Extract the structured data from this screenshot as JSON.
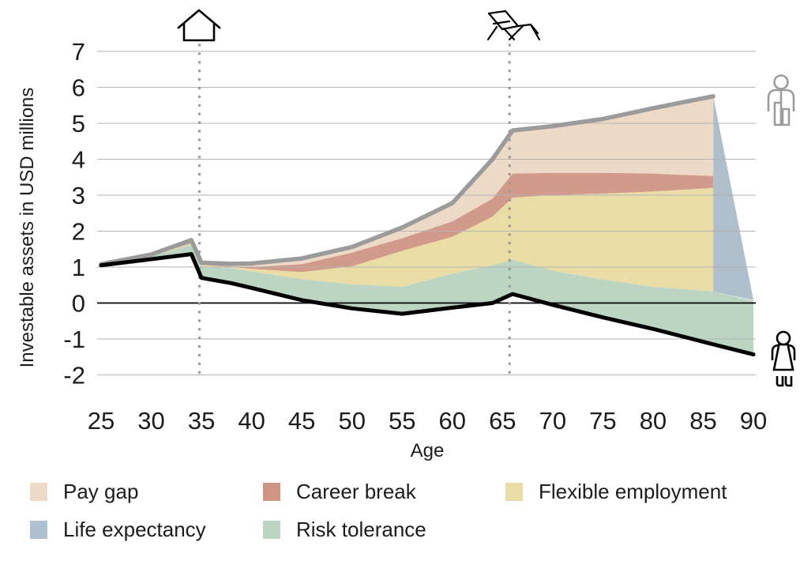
{
  "chart_data": {
    "type": "area",
    "title": "",
    "xlabel": "Age",
    "ylabel": "Investable assets in USD millions",
    "x_ticks": [
      25,
      30,
      35,
      40,
      45,
      50,
      55,
      60,
      65,
      70,
      75,
      80,
      85,
      90
    ],
    "y_ticks": [
      -2,
      -1,
      0,
      1,
      2,
      3,
      4,
      5,
      6,
      7
    ],
    "xlim": [
      25,
      90
    ],
    "ylim": [
      -2,
      7
    ],
    "grid": "horizontal",
    "ages": [
      25,
      30,
      34,
      35,
      38,
      40,
      45,
      50,
      55,
      60,
      64,
      66,
      70,
      75,
      80,
      86,
      90
    ],
    "series": [
      {
        "name": "wealth-without-gaps-gray-line",
        "ends_at_age": 86,
        "values": [
          1.08,
          1.35,
          1.75,
          1.12,
          1.09,
          1.1,
          1.24,
          1.56,
          2.1,
          2.78,
          4.0,
          4.8,
          4.92,
          5.12,
          5.42,
          5.75
        ]
      },
      {
        "name": "career-break-top-boundary",
        "ends_at_age": 86,
        "values": [
          1.08,
          1.33,
          1.68,
          1.08,
          1.02,
          1.0,
          1.08,
          1.4,
          1.8,
          2.27,
          2.9,
          3.6,
          3.62,
          3.62,
          3.6,
          3.53
        ]
      },
      {
        "name": "flexible-employment-top-boundary",
        "ends_at_age": 86,
        "values": [
          1.08,
          1.32,
          1.66,
          1.06,
          1.0,
          0.95,
          0.86,
          1.02,
          1.45,
          1.84,
          2.4,
          2.93,
          3.0,
          3.04,
          3.1,
          3.2
        ]
      },
      {
        "name": "risk-tolerance-top-boundary",
        "ends_at_age": 90,
        "values": [
          1.07,
          1.3,
          1.62,
          1.02,
          0.97,
          0.88,
          0.66,
          0.52,
          0.45,
          0.82,
          1.05,
          1.2,
          0.9,
          0.65,
          0.45,
          0.32,
          0.06
        ]
      },
      {
        "name": "actual-wealth-black-line",
        "ends_at_age": 90,
        "values": [
          1.05,
          1.22,
          1.36,
          0.7,
          0.55,
          0.42,
          0.08,
          -0.15,
          -0.3,
          -0.13,
          0.0,
          0.25,
          -0.05,
          -0.4,
          -0.72,
          -1.15,
          -1.43
        ]
      }
    ],
    "life_expectancy_wedge": {
      "ages": [
        86,
        90
      ],
      "top": [
        5.75,
        0.08
      ],
      "bottom": [
        0.32,
        0.08
      ]
    },
    "milestones": [
      {
        "age": 34.8,
        "icon": "house-icon"
      },
      {
        "age": 65.7,
        "icon": "deck-chair-icon"
      }
    ],
    "side_icons": [
      "man-icon",
      "woman-icon"
    ],
    "legend": [
      {
        "label": "Pay gap",
        "color": "#ecd9c6"
      },
      {
        "label": "Career break",
        "color": "#cf9484"
      },
      {
        "label": "Flexible employment",
        "color": "#e9dca5"
      },
      {
        "label": "Life expectancy",
        "color": "#aebfd0"
      },
      {
        "label": "Risk tolerance",
        "color": "#bbd5c2"
      }
    ],
    "colors": {
      "pay_gap_area": "#ecd9c6",
      "career_break_area": "#d29a8a",
      "flexible_employment_area": "#e9dca5",
      "risk_tolerance_area": "#bbd5c2",
      "life_expectancy_area": "#aebfcb",
      "gray_line": "#9b9b9b",
      "black_line": "#000000",
      "gridline": "#b3b3b3",
      "zero_line": "#000000",
      "dotted_line": "#9a9a9a",
      "text": "#1c1c1c"
    }
  }
}
